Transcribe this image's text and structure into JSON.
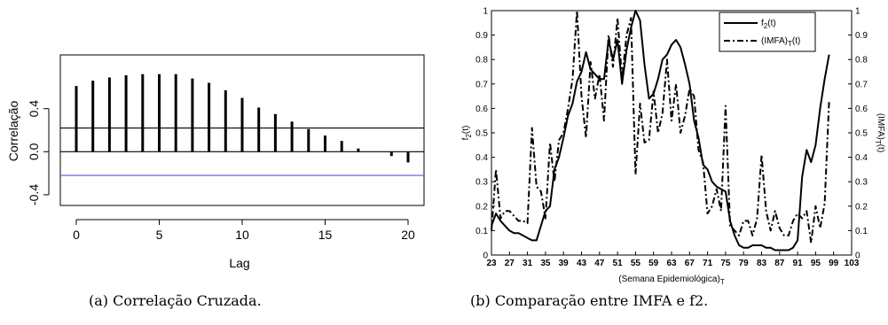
{
  "captions": {
    "a": "(a) Correlação Cruzada.",
    "b": "(b) Comparação entre IMFA e f2."
  },
  "chart_data": [
    {
      "type": "bar",
      "subtype": "acf-stem",
      "xlabel": "Lag",
      "ylabel": "Correlação",
      "xlim": [
        0,
        20
      ],
      "ylim": [
        -0.45,
        0.85
      ],
      "x_ticks": [
        "0",
        "5",
        "10",
        "15",
        "20"
      ],
      "y_ticks": [
        "-0.4",
        "0.0",
        "0.4"
      ],
      "x_tick_values": [
        0,
        5,
        10,
        15,
        20
      ],
      "y_tick_values": [
        -0.4,
        0.0,
        0.4
      ],
      "reference_lines": [
        {
          "name": "upper-bound",
          "y": 0.22,
          "color": "#000000"
        },
        {
          "name": "zero-line",
          "y": 0.0,
          "color": "#000000"
        },
        {
          "name": "lower-bound",
          "y": -0.22,
          "color": "#5a5ad6"
        }
      ],
      "categories": [
        0,
        1,
        2,
        3,
        4,
        5,
        6,
        7,
        8,
        9,
        10,
        11,
        12,
        13,
        14,
        15,
        16,
        17,
        18,
        19,
        20
      ],
      "values": [
        0.61,
        0.66,
        0.69,
        0.71,
        0.72,
        0.72,
        0.72,
        0.68,
        0.64,
        0.57,
        0.5,
        0.41,
        0.35,
        0.28,
        0.21,
        0.15,
        0.1,
        0.03,
        0.0,
        -0.04,
        -0.1
      ],
      "grid": false
    },
    {
      "type": "line",
      "xlabel": "(Semana Epidemiológica)",
      "xlabel_sub": "T",
      "ylabel_left": "f",
      "ylabel_left_sub": "2",
      "ylabel_left_suffix": "(t)",
      "ylabel_right": "(IMFA)",
      "ylabel_right_sub": "T",
      "ylabel_right_suffix": "(t)",
      "xlim": [
        23,
        103
      ],
      "ylim": [
        0,
        1
      ],
      "x_ticks": [
        "23",
        "27",
        "31",
        "35",
        "39",
        "43",
        "47",
        "51",
        "55",
        "59",
        "63",
        "67",
        "71",
        "75",
        "79",
        "83",
        "87",
        "91",
        "95",
        "99",
        "103"
      ],
      "x_tick_values": [
        23,
        27,
        31,
        35,
        39,
        43,
        47,
        51,
        55,
        59,
        63,
        67,
        71,
        75,
        79,
        83,
        87,
        91,
        95,
        99,
        103
      ],
      "y_ticks": [
        "0",
        "0.1",
        "0.2",
        "0.3",
        "0.4",
        "0.5",
        "0.6",
        "0.7",
        "0.8",
        "0.9",
        "1"
      ],
      "y_tick_values": [
        0,
        0.1,
        0.2,
        0.3,
        0.4,
        0.5,
        0.6,
        0.7,
        0.8,
        0.9,
        1
      ],
      "legend_placement": "top-right",
      "grid": false,
      "series": [
        {
          "name": "f",
          "name_sub": "2",
          "name_suffix": "(t)",
          "style": "solid",
          "color": "#000000",
          "x": [
            23,
            24,
            25,
            26,
            27,
            28,
            29,
            30,
            31,
            32,
            33,
            34,
            35,
            36,
            37,
            38,
            39,
            40,
            41,
            42,
            43,
            44,
            45,
            46,
            47,
            48,
            49,
            50,
            51,
            52,
            53,
            54,
            55,
            56,
            57,
            58,
            59,
            60,
            61,
            62,
            63,
            64,
            65,
            66,
            67,
            68,
            69,
            70,
            71,
            72,
            73,
            74,
            75,
            76,
            77,
            78,
            79,
            80,
            81,
            82,
            83,
            84,
            85,
            86,
            87,
            88,
            89,
            90,
            91,
            92,
            93,
            94,
            95,
            96,
            97,
            98
          ],
          "values": [
            0.12,
            0.17,
            0.14,
            0.12,
            0.1,
            0.09,
            0.09,
            0.08,
            0.07,
            0.06,
            0.06,
            0.12,
            0.18,
            0.2,
            0.35,
            0.4,
            0.48,
            0.57,
            0.62,
            0.71,
            0.75,
            0.83,
            0.76,
            0.74,
            0.72,
            0.72,
            0.88,
            0.8,
            0.88,
            0.7,
            0.84,
            0.93,
            1.0,
            0.96,
            0.78,
            0.64,
            0.66,
            0.72,
            0.8,
            0.82,
            0.86,
            0.88,
            0.85,
            0.78,
            0.7,
            0.55,
            0.48,
            0.37,
            0.35,
            0.3,
            0.28,
            0.27,
            0.26,
            0.14,
            0.08,
            0.04,
            0.03,
            0.03,
            0.04,
            0.04,
            0.04,
            0.03,
            0.03,
            0.02,
            0.02,
            0.02,
            0.02,
            0.03,
            0.06,
            0.32,
            0.43,
            0.38,
            0.45,
            0.6,
            0.72,
            0.82
          ]
        },
        {
          "name": "(IMFA)",
          "name_sub": "T",
          "name_suffix": "(t)",
          "style": "dash-dot",
          "color": "#000000",
          "x": [
            23,
            24,
            25,
            26,
            27,
            28,
            29,
            30,
            31,
            32,
            33,
            34,
            35,
            36,
            37,
            38,
            39,
            40,
            41,
            42,
            43,
            44,
            45,
            46,
            47,
            48,
            49,
            50,
            51,
            52,
            53,
            54,
            55,
            56,
            57,
            58,
            59,
            60,
            61,
            62,
            63,
            64,
            65,
            66,
            67,
            68,
            69,
            70,
            71,
            72,
            73,
            74,
            75,
            76,
            77,
            78,
            79,
            80,
            81,
            82,
            83,
            84,
            85,
            86,
            87,
            88,
            89,
            90,
            91,
            92,
            93,
            94,
            95,
            96,
            97,
            98
          ],
          "values": [
            0.1,
            0.35,
            0.15,
            0.18,
            0.18,
            0.16,
            0.14,
            0.14,
            0.13,
            0.52,
            0.28,
            0.26,
            0.15,
            0.46,
            0.3,
            0.47,
            0.5,
            0.6,
            0.72,
            1.0,
            0.65,
            0.48,
            0.79,
            0.64,
            0.74,
            0.55,
            0.9,
            0.77,
            0.97,
            0.72,
            0.9,
            0.97,
            0.33,
            0.62,
            0.46,
            0.47,
            0.67,
            0.5,
            0.58,
            0.8,
            0.55,
            0.7,
            0.5,
            0.57,
            0.68,
            0.65,
            0.43,
            0.38,
            0.17,
            0.2,
            0.27,
            0.18,
            0.61,
            0.12,
            0.1,
            0.08,
            0.14,
            0.14,
            0.08,
            0.15,
            0.41,
            0.18,
            0.1,
            0.18,
            0.11,
            0.08,
            0.08,
            0.14,
            0.17,
            0.15,
            0.18,
            0.05,
            0.2,
            0.11,
            0.21,
            0.63
          ]
        }
      ]
    }
  ]
}
